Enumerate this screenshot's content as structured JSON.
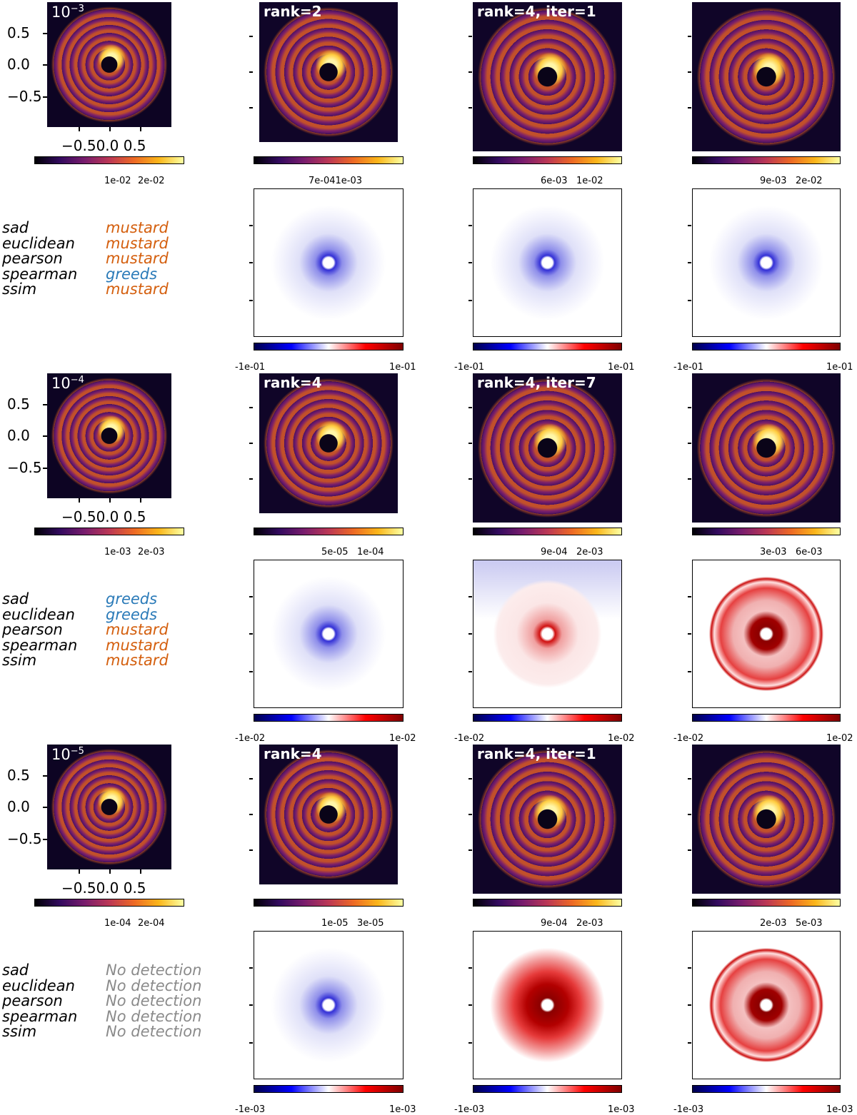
{
  "colors": {
    "mustard": "#d45f0e",
    "greeds": "#2a7ab8",
    "no_detection": "#8a8a8a"
  },
  "groups": [
    {
      "exponent_base": "10",
      "exponent_power": "−3",
      "axis_ticks_y": [
        "0.5",
        "0.0",
        "−0.5"
      ],
      "axis_ticks_x": "−0.50.0 0.5",
      "data_cbar_ticks": [
        "1e-02",
        "2e-02"
      ],
      "panel_labels": [
        "rank=2",
        "rank=4, iter=1",
        ""
      ],
      "panel_cbar_ticks": [
        [
          "7e-041e-03"
        ],
        [
          "6e-03",
          "1e-02"
        ],
        [
          "9e-03",
          "2e-02"
        ]
      ],
      "residual_cbar_min": "-1e-01",
      "residual_cbar_max": "1e-01",
      "metrics": [
        {
          "name": "sad",
          "winner": "mustard"
        },
        {
          "name": "euclidean",
          "winner": "mustard"
        },
        {
          "name": "pearson",
          "winner": "mustard"
        },
        {
          "name": "spearman",
          "winner": "greeds"
        },
        {
          "name": "ssim",
          "winner": "mustard"
        }
      ]
    },
    {
      "exponent_base": "10",
      "exponent_power": "−4",
      "axis_ticks_y": [
        "0.5",
        "0.0",
        "−0.5"
      ],
      "axis_ticks_x": "−0.50.0 0.5",
      "data_cbar_ticks": [
        "1e-03",
        "2e-03"
      ],
      "panel_labels": [
        "rank=4",
        "rank=4, iter=7",
        ""
      ],
      "panel_cbar_ticks": [
        [
          "5e-05",
          "1e-04"
        ],
        [
          "9e-04",
          "2e-03"
        ],
        [
          "3e-03",
          "6e-03"
        ]
      ],
      "residual_cbar_min": "-1e-02",
      "residual_cbar_max": "1e-02",
      "metrics": [
        {
          "name": "sad",
          "winner": "greeds"
        },
        {
          "name": "euclidean",
          "winner": "greeds"
        },
        {
          "name": "pearson",
          "winner": "mustard"
        },
        {
          "name": "spearman",
          "winner": "mustard"
        },
        {
          "name": "ssim",
          "winner": "mustard"
        }
      ]
    },
    {
      "exponent_base": "10",
      "exponent_power": "−5",
      "axis_ticks_y": [
        "0.5",
        "0.0",
        "−0.5"
      ],
      "axis_ticks_x": "−0.50.0 0.5",
      "data_cbar_ticks": [
        "1e-04",
        "2e-04"
      ],
      "panel_labels": [
        "rank=4",
        "rank=4, iter=1",
        ""
      ],
      "panel_cbar_ticks": [
        [
          "1e-05",
          "3e-05"
        ],
        [
          "9e-04",
          "2e-03"
        ],
        [
          "2e-03",
          "5e-03"
        ]
      ],
      "residual_cbar_min": "-1e-03",
      "residual_cbar_max": "1e-03",
      "metrics": [
        {
          "name": "sad",
          "winner": "No detection"
        },
        {
          "name": "euclidean",
          "winner": "No detection"
        },
        {
          "name": "pearson",
          "winner": "No detection"
        },
        {
          "name": "spearman",
          "winner": "No detection"
        },
        {
          "name": "ssim",
          "winner": "No detection"
        }
      ]
    }
  ]
}
